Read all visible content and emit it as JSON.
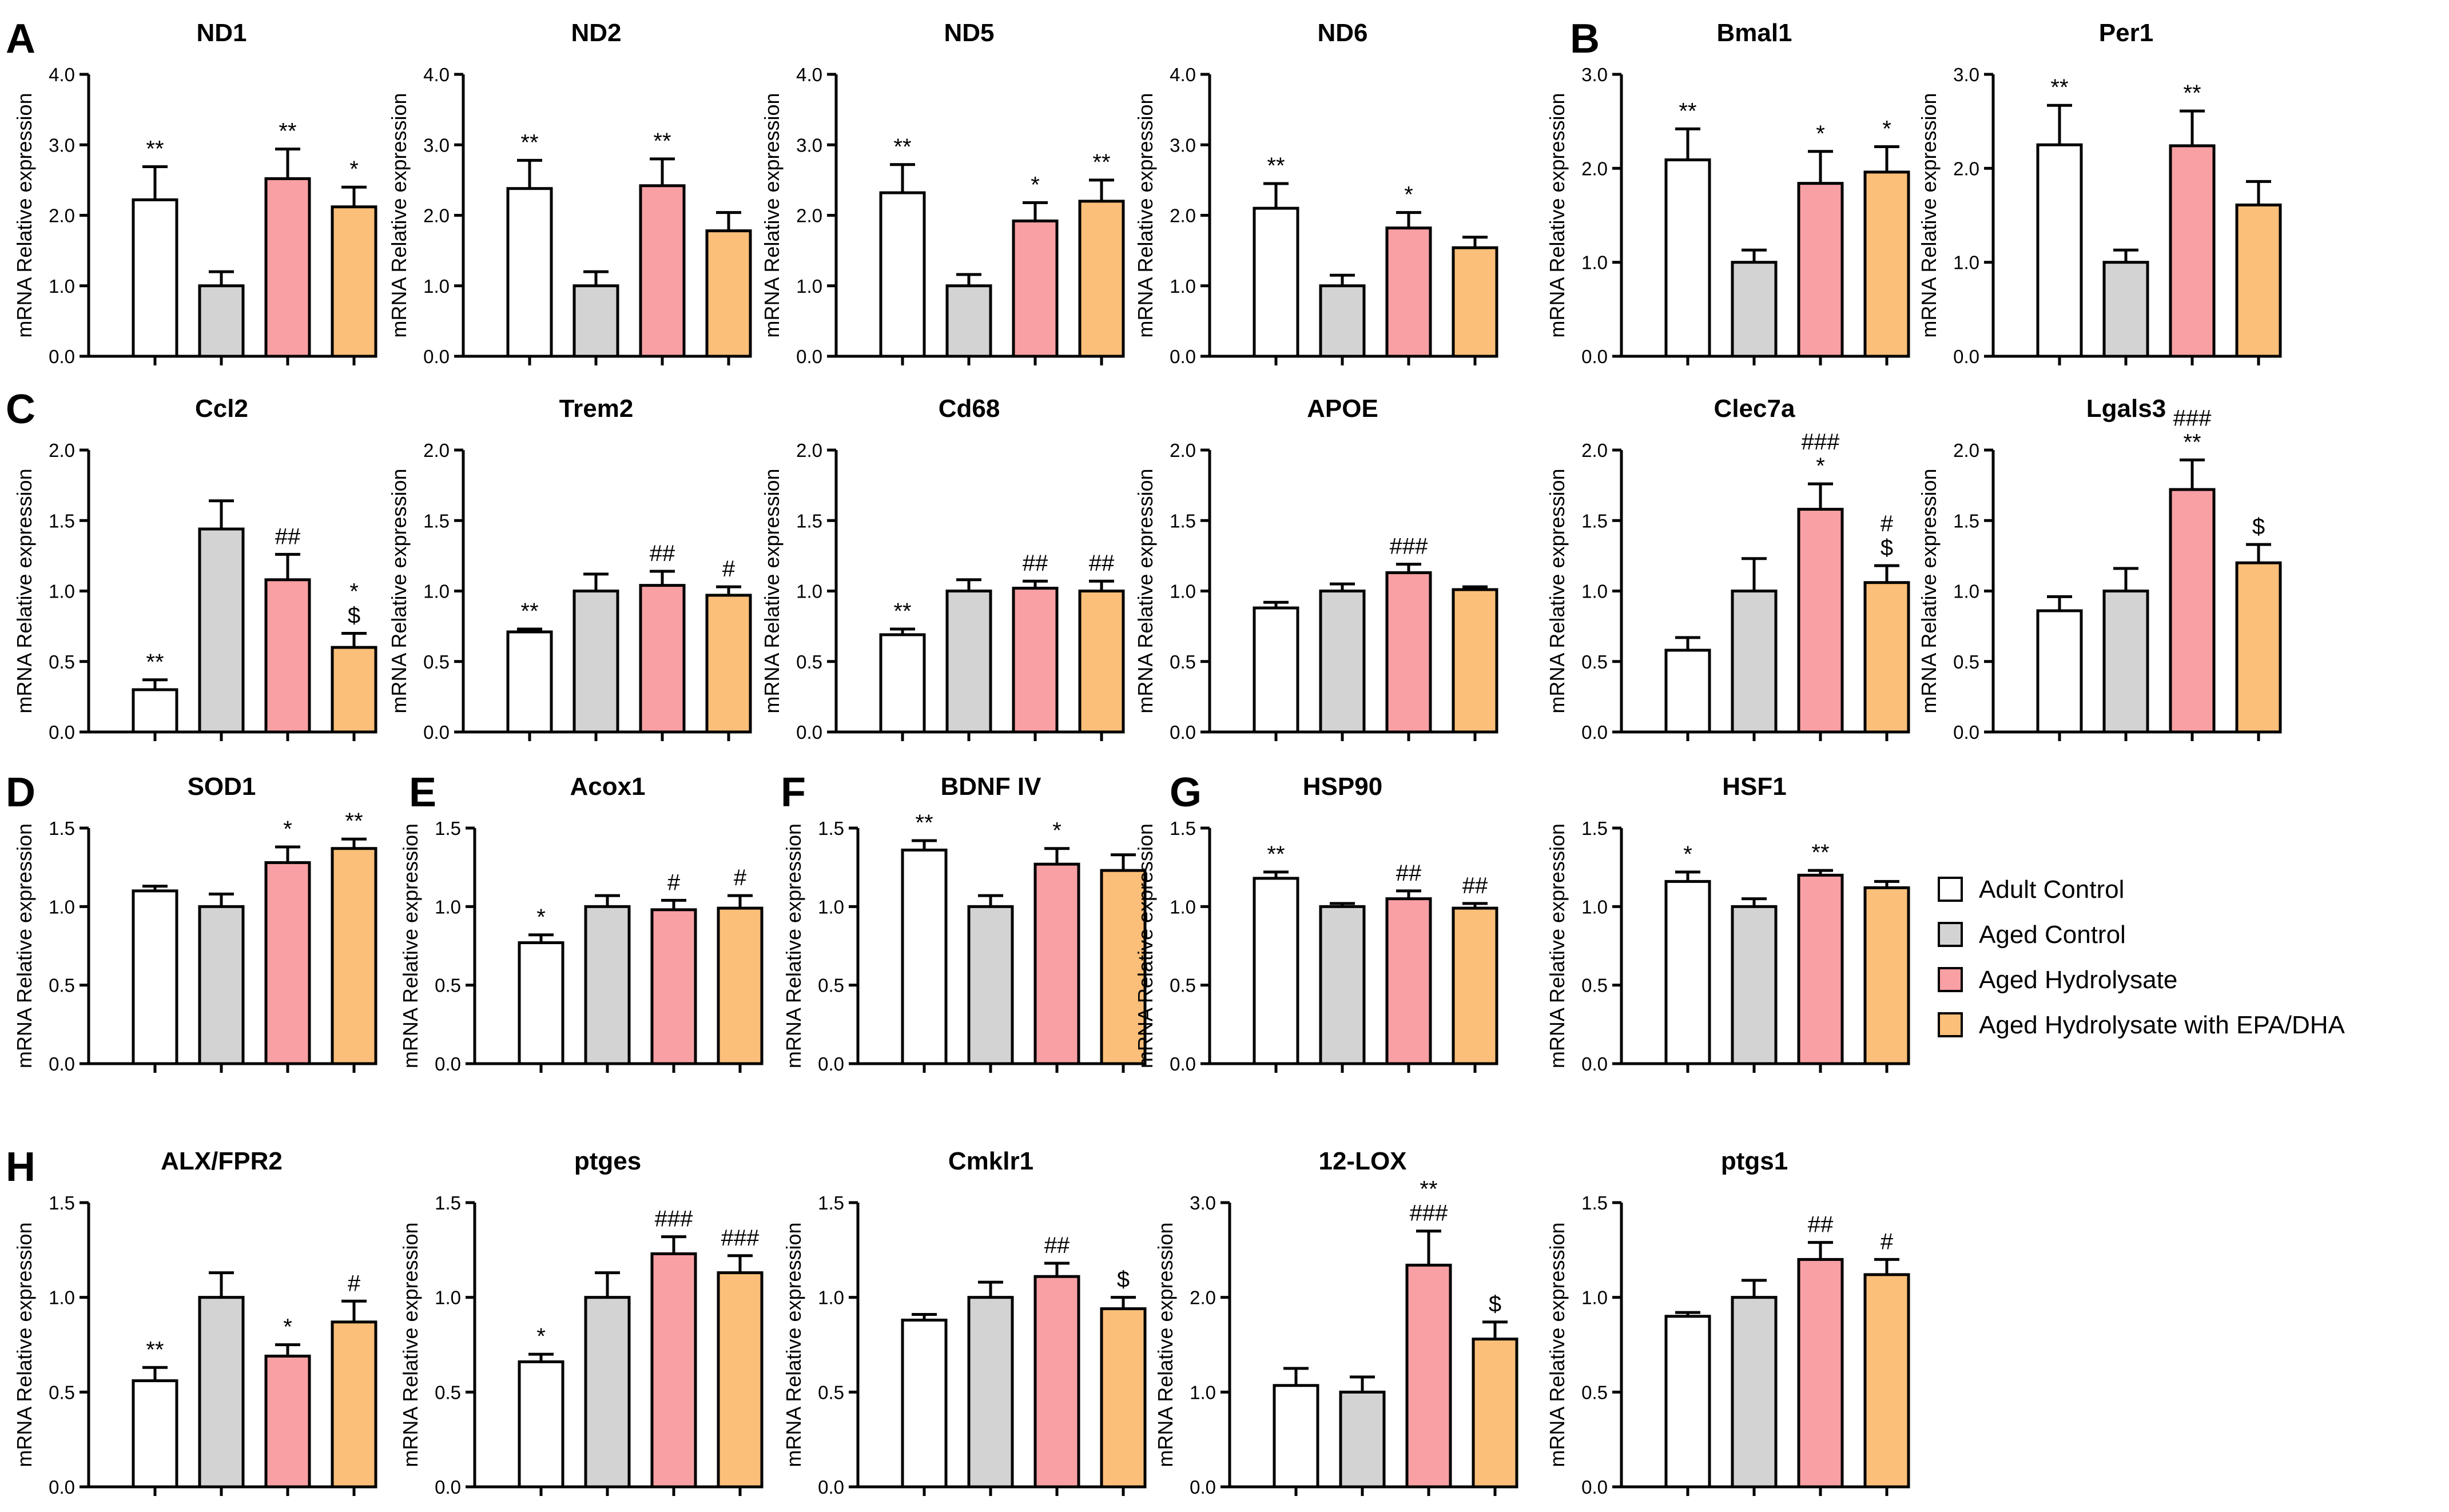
{
  "figure": {
    "panel_labels": [
      {
        "text": "A",
        "anchor": "ND1"
      },
      {
        "text": "B",
        "anchor": "Bmal1"
      },
      {
        "text": "C",
        "anchor": "Ccl2"
      },
      {
        "text": "D",
        "anchor": "SOD1"
      },
      {
        "text": "E",
        "anchor": "Acox1"
      },
      {
        "text": "F",
        "anchor": "BDNF IV"
      },
      {
        "text": "G",
        "anchor": "HSP90"
      },
      {
        "text": "H",
        "anchor": "ALX/FPR2"
      }
    ],
    "legend": [
      {
        "label": "Adult Control",
        "color": "#ffffff"
      },
      {
        "label": "Aged Control",
        "color": "#d3d3d3"
      },
      {
        "label": "Aged Hydrolysate",
        "color": "#f8a0a4"
      },
      {
        "label": "Aged Hydrolysate with EPA/DHA",
        "color": "#fbbf79"
      }
    ]
  },
  "chart_data": [
    {
      "type": "bar",
      "title": "ND1",
      "ylabel": "mRNA Relative expression",
      "ylim": [
        0,
        4
      ],
      "ticks": [
        "0.0",
        "1.0",
        "2.0",
        "3.0",
        "4.0"
      ],
      "values": [
        2.22,
        1.0,
        2.52,
        2.12
      ],
      "errors": [
        0.47,
        0.2,
        0.42,
        0.28
      ],
      "sig": [
        [
          "**"
        ],
        [],
        [
          "**"
        ],
        [
          "*"
        ]
      ]
    },
    {
      "type": "bar",
      "title": "ND2",
      "ylabel": "mRNA Relative expression",
      "ylim": [
        0,
        4
      ],
      "ticks": [
        "0.0",
        "1.0",
        "2.0",
        "3.0",
        "4.0"
      ],
      "values": [
        2.38,
        1.0,
        2.42,
        1.78
      ],
      "errors": [
        0.4,
        0.2,
        0.38,
        0.26
      ],
      "sig": [
        [
          "**"
        ],
        [],
        [
          "**"
        ],
        []
      ]
    },
    {
      "type": "bar",
      "title": "ND5",
      "ylabel": "mRNA Relative expression",
      "ylim": [
        0,
        4
      ],
      "ticks": [
        "0.0",
        "1.0",
        "2.0",
        "3.0",
        "4.0"
      ],
      "values": [
        2.32,
        1.0,
        1.92,
        2.2
      ],
      "errors": [
        0.4,
        0.16,
        0.26,
        0.3
      ],
      "sig": [
        [
          "**"
        ],
        [],
        [
          "*"
        ],
        [
          "**"
        ]
      ]
    },
    {
      "type": "bar",
      "title": "ND6",
      "ylabel": "mRNA Relative expression",
      "ylim": [
        0,
        4
      ],
      "ticks": [
        "0.0",
        "1.0",
        "2.0",
        "3.0",
        "4.0"
      ],
      "values": [
        2.1,
        1.0,
        1.82,
        1.54
      ],
      "errors": [
        0.35,
        0.15,
        0.22,
        0.15
      ],
      "sig": [
        [
          "**"
        ],
        [],
        [
          "*"
        ],
        []
      ]
    },
    {
      "type": "bar",
      "title": "Bmal1",
      "ylabel": "mRNA Relative expression",
      "ylim": [
        0,
        3
      ],
      "ticks": [
        "0.0",
        "1.0",
        "2.0",
        "3.0"
      ],
      "values": [
        2.09,
        1.0,
        1.84,
        1.96
      ],
      "errors": [
        0.33,
        0.13,
        0.34,
        0.27
      ],
      "sig": [
        [
          "**"
        ],
        [],
        [
          "*"
        ],
        [
          "*"
        ]
      ]
    },
    {
      "type": "bar",
      "title": "Per1",
      "ylabel": "mRNA Relative expression",
      "ylim": [
        0,
        3
      ],
      "ticks": [
        "0.0",
        "1.0",
        "2.0",
        "3.0"
      ],
      "values": [
        2.25,
        1.0,
        2.24,
        1.61
      ],
      "errors": [
        0.42,
        0.13,
        0.37,
        0.25
      ],
      "sig": [
        [
          "**"
        ],
        [],
        [
          "**"
        ],
        []
      ]
    },
    {
      "type": "bar",
      "title": "Ccl2",
      "ylabel": "mRNA Relative expression",
      "ylim": [
        0,
        2
      ],
      "ticks": [
        "0.0",
        "0.5",
        "1.0",
        "1.5",
        "2.0"
      ],
      "values": [
        0.3,
        1.44,
        1.08,
        0.6
      ],
      "errors": [
        0.07,
        0.2,
        0.18,
        0.1
      ],
      "sig": [
        [
          "**"
        ],
        [],
        [
          "##"
        ],
        [
          "*",
          "$"
        ]
      ]
    },
    {
      "type": "bar",
      "title": "Trem2",
      "ylabel": "mRNA Relative expression",
      "ylim": [
        0,
        2
      ],
      "ticks": [
        "0.0",
        "0.5",
        "1.0",
        "1.5",
        "2.0"
      ],
      "values": [
        0.71,
        1.0,
        1.04,
        0.97
      ],
      "errors": [
        0.02,
        0.12,
        0.1,
        0.06
      ],
      "sig": [
        [
          "**"
        ],
        [],
        [
          "##"
        ],
        [
          "#"
        ]
      ]
    },
    {
      "type": "bar",
      "title": "Cd68",
      "ylabel": "mRNA Relative expression",
      "ylim": [
        0,
        2
      ],
      "ticks": [
        "0.0",
        "0.5",
        "1.0",
        "1.5",
        "2.0"
      ],
      "values": [
        0.69,
        1.0,
        1.02,
        1.0
      ],
      "errors": [
        0.04,
        0.08,
        0.05,
        0.07
      ],
      "sig": [
        [
          "**"
        ],
        [],
        [
          "##"
        ],
        [
          "##"
        ]
      ]
    },
    {
      "type": "bar",
      "title": "APOE",
      "ylabel": "mRNA Relative expression",
      "ylim": [
        0,
        2
      ],
      "ticks": [
        "0.0",
        "0.5",
        "1.0",
        "1.5",
        "2.0"
      ],
      "values": [
        0.88,
        1.0,
        1.13,
        1.01
      ],
      "errors": [
        0.04,
        0.05,
        0.06,
        0.02
      ],
      "sig": [
        [],
        [],
        [
          "###"
        ],
        []
      ]
    },
    {
      "type": "bar",
      "title": "Clec7a",
      "ylabel": "mRNA Relative expression",
      "ylim": [
        0,
        2
      ],
      "ticks": [
        "0.0",
        "0.5",
        "1.0",
        "1.5",
        "2.0"
      ],
      "values": [
        0.58,
        1.0,
        1.58,
        1.06
      ],
      "errors": [
        0.09,
        0.23,
        0.18,
        0.12
      ],
      "sig": [
        [],
        [],
        [
          "###",
          "*"
        ],
        [
          "#",
          "$"
        ]
      ]
    },
    {
      "type": "bar",
      "title": "Lgals3",
      "ylabel": "mRNA Relative expression",
      "ylim": [
        0,
        2
      ],
      "ticks": [
        "0.0",
        "0.5",
        "1.0",
        "1.5",
        "2.0"
      ],
      "values": [
        0.86,
        1.0,
        1.72,
        1.2
      ],
      "errors": [
        0.1,
        0.16,
        0.21,
        0.13
      ],
      "sig": [
        [],
        [],
        [
          "###",
          "**"
        ],
        [
          "$"
        ]
      ]
    },
    {
      "type": "bar",
      "title": "SOD1",
      "ylabel": "mRNA Relative expression",
      "ylim": [
        0,
        1.5
      ],
      "ticks": [
        "0.0",
        "0.5",
        "1.0",
        "1.5"
      ],
      "values": [
        1.1,
        1.0,
        1.28,
        1.37
      ],
      "errors": [
        0.03,
        0.08,
        0.1,
        0.06
      ],
      "sig": [
        [],
        [],
        [
          "*"
        ],
        [
          "**"
        ]
      ]
    },
    {
      "type": "bar",
      "title": "Acox1",
      "ylabel": "mRNA Relative expression",
      "ylim": [
        0,
        1.5
      ],
      "ticks": [
        "0.0",
        "0.5",
        "1.0",
        "1.5"
      ],
      "values": [
        0.77,
        1.0,
        0.98,
        0.99
      ],
      "errors": [
        0.05,
        0.07,
        0.06,
        0.08
      ],
      "sig": [
        [
          "*"
        ],
        [],
        [
          "#"
        ],
        [
          "#"
        ]
      ]
    },
    {
      "type": "bar",
      "title": "BDNF IV",
      "ylabel": "mRNA Relative expression",
      "ylim": [
        0,
        1.5
      ],
      "ticks": [
        "0.0",
        "0.5",
        "1.0",
        "1.5"
      ],
      "values": [
        1.36,
        1.0,
        1.27,
        1.23
      ],
      "errors": [
        0.06,
        0.07,
        0.1,
        0.1
      ],
      "sig": [
        [
          "**"
        ],
        [],
        [
          "*"
        ],
        []
      ]
    },
    {
      "type": "bar",
      "title": "HSP90",
      "ylabel": "mRNA Relative expression",
      "ylim": [
        0,
        1.5
      ],
      "ticks": [
        "0.0",
        "0.5",
        "1.0",
        "1.5"
      ],
      "values": [
        1.18,
        1.0,
        1.05,
        0.99
      ],
      "errors": [
        0.04,
        0.02,
        0.05,
        0.03
      ],
      "sig": [
        [
          "**"
        ],
        [],
        [
          "##"
        ],
        [
          "##"
        ]
      ]
    },
    {
      "type": "bar",
      "title": "HSF1",
      "ylabel": "mRNA Relative expression",
      "ylim": [
        0,
        1.5
      ],
      "ticks": [
        "0.0",
        "0.5",
        "1.0",
        "1.5"
      ],
      "values": [
        1.16,
        1.0,
        1.2,
        1.12
      ],
      "errors": [
        0.06,
        0.05,
        0.03,
        0.04
      ],
      "sig": [
        [
          "*"
        ],
        [],
        [
          "**"
        ],
        []
      ]
    },
    {
      "type": "bar",
      "title": "ALX/FPR2",
      "ylabel": "mRNA Relative expression",
      "ylim": [
        0,
        1.5
      ],
      "ticks": [
        "0.0",
        "0.5",
        "1.0",
        "1.5"
      ],
      "values": [
        0.56,
        1.0,
        0.69,
        0.87
      ],
      "errors": [
        0.07,
        0.13,
        0.06,
        0.11
      ],
      "sig": [
        [
          "**"
        ],
        [],
        [
          "*"
        ],
        [
          "#"
        ]
      ]
    },
    {
      "type": "bar",
      "title": "ptges",
      "ylabel": "mRNA Relative expression",
      "ylim": [
        0,
        1.5
      ],
      "ticks": [
        "0.0",
        "0.5",
        "1.0",
        "1.5"
      ],
      "values": [
        0.66,
        1.0,
        1.23,
        1.13
      ],
      "errors": [
        0.04,
        0.13,
        0.09,
        0.09
      ],
      "sig": [
        [
          "*"
        ],
        [],
        [
          "###"
        ],
        [
          "###"
        ]
      ]
    },
    {
      "type": "bar",
      "title": "Cmklr1",
      "ylabel": "mRNA Relative expression",
      "ylim": [
        0,
        1.5
      ],
      "ticks": [
        "0.0",
        "0.5",
        "1.0",
        "1.5"
      ],
      "values": [
        0.88,
        1.0,
        1.11,
        0.94
      ],
      "errors": [
        0.03,
        0.08,
        0.07,
        0.06
      ],
      "sig": [
        [],
        [],
        [
          "##"
        ],
        [
          "$"
        ]
      ]
    },
    {
      "type": "bar",
      "title": "12-LOX",
      "ylabel": "mRNA Relative expression",
      "ylim": [
        0,
        3
      ],
      "ticks": [
        "0.0",
        "1.0",
        "2.0",
        "3.0"
      ],
      "values": [
        1.07,
        1.0,
        2.34,
        1.56
      ],
      "errors": [
        0.18,
        0.16,
        0.36,
        0.18
      ],
      "sig": [
        [],
        [],
        [
          "**",
          "###"
        ],
        [
          "$"
        ]
      ]
    },
    {
      "type": "bar",
      "title": "ptgs1",
      "ylabel": "mRNA Relative expression",
      "ylim": [
        0,
        1.5
      ],
      "ticks": [
        "0.0",
        "0.5",
        "1.0",
        "1.5"
      ],
      "values": [
        0.9,
        1.0,
        1.2,
        1.12
      ],
      "errors": [
        0.02,
        0.09,
        0.09,
        0.08
      ],
      "sig": [
        [],
        [],
        [
          "##"
        ],
        [
          "#"
        ]
      ]
    }
  ]
}
